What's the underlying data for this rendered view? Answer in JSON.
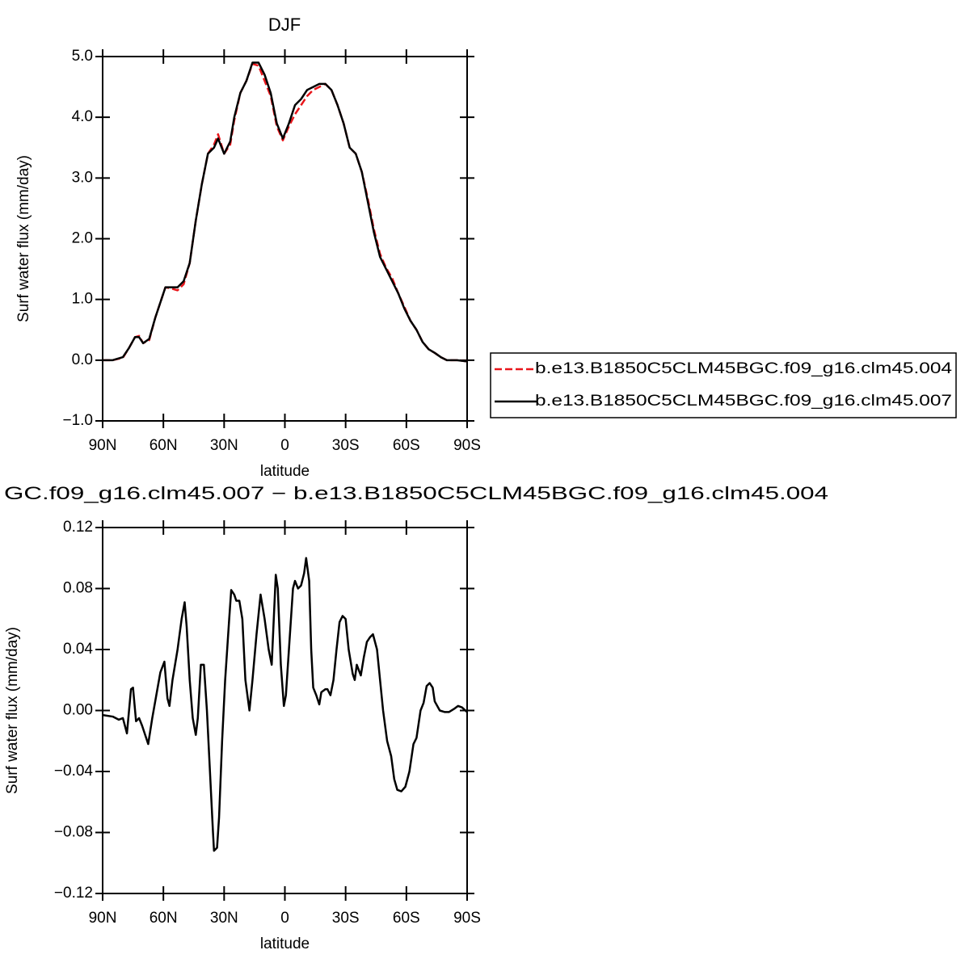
{
  "chart_data": [
    {
      "type": "line",
      "title": "DJF",
      "xlabel": "latitude",
      "ylabel": "Surf water flux (mm/day)",
      "xlim": [
        90,
        -90
      ],
      "xticks": [
        {
          "value": 90,
          "label": "90N"
        },
        {
          "value": 60,
          "label": "60N"
        },
        {
          "value": 30,
          "label": "30N"
        },
        0,
        {
          "value": -30,
          "label": "30S"
        },
        {
          "value": -60,
          "label": "60S"
        },
        {
          "value": -90,
          "label": "90S"
        }
      ],
      "ylim": [
        -1,
        5
      ],
      "yticks": [
        {
          "value": -1,
          "label": "−1.0"
        },
        {
          "value": 0,
          "label": "0.0"
        },
        {
          "value": 1,
          "label": "1.0"
        },
        {
          "value": 2,
          "label": "2.0"
        },
        {
          "value": 3,
          "label": "3.0"
        },
        {
          "value": 4,
          "label": "4.0"
        },
        {
          "value": 5,
          "label": "5.0"
        }
      ],
      "legend": "right",
      "x": [
        90,
        85,
        80,
        77,
        74,
        72,
        70,
        67,
        64,
        61,
        59,
        56,
        53,
        50,
        47,
        44,
        41,
        38,
        35,
        33,
        30,
        27,
        25,
        22,
        19,
        16,
        13,
        10,
        7,
        4,
        1,
        -2,
        -5,
        -8,
        -11,
        -14,
        -17,
        -20,
        -23,
        -26,
        -29,
        -32,
        -35,
        -38,
        -41,
        -44,
        -47,
        -50,
        -53,
        -56,
        -59,
        -62,
        -65,
        -68,
        -71,
        -74,
        -77,
        -80,
        -85,
        -90
      ],
      "series": [
        {
          "name": "b.e13.B1850C5CLM45BGC.f09_g16.clm45.004",
          "color": "#e8161b",
          "dashed": true,
          "values": [
            0,
            0,
            0.04,
            0.2,
            0.38,
            0.4,
            0.28,
            0.33,
            0.7,
            1.0,
            1.2,
            1.18,
            1.15,
            1.25,
            1.6,
            2.3,
            2.9,
            3.4,
            3.55,
            3.72,
            3.4,
            3.55,
            3.95,
            4.4,
            4.6,
            4.88,
            4.85,
            4.6,
            4.35,
            3.85,
            3.62,
            3.85,
            4.05,
            4.2,
            4.35,
            4.45,
            4.5,
            4.55,
            4.45,
            4.2,
            3.9,
            3.5,
            3.4,
            3.1,
            2.65,
            2.15,
            1.75,
            1.52,
            1.35,
            1.1,
            0.88,
            0.65,
            0.5,
            0.3,
            0.18,
            0.12,
            0.05,
            0,
            0,
            -0.02
          ]
        },
        {
          "name": "b.e13.B1850C5CLM45BGC.f09_g16.clm45.007",
          "color": "#000000",
          "dashed": false,
          "values": [
            0,
            0,
            0.05,
            0.2,
            0.38,
            0.38,
            0.28,
            0.35,
            0.7,
            1.0,
            1.2,
            1.2,
            1.2,
            1.3,
            1.6,
            2.3,
            2.9,
            3.4,
            3.5,
            3.65,
            3.4,
            3.6,
            4.0,
            4.4,
            4.6,
            4.9,
            4.9,
            4.7,
            4.4,
            3.9,
            3.65,
            3.9,
            4.2,
            4.3,
            4.45,
            4.5,
            4.55,
            4.55,
            4.45,
            4.2,
            3.9,
            3.5,
            3.4,
            3.1,
            2.6,
            2.1,
            1.7,
            1.5,
            1.3,
            1.1,
            0.85,
            0.65,
            0.5,
            0.3,
            0.18,
            0.12,
            0.05,
            0,
            0,
            -0.02
          ]
        }
      ]
    },
    {
      "type": "line",
      "title": "GC.f09_g16.clm45.007 − b.e13.B1850C5CLM45BGC.f09_g16.clm45.004",
      "xlabel": "latitude",
      "ylabel": "Surf water flux (mm/day)",
      "xlim": [
        90,
        -90
      ],
      "xticks": [
        {
          "value": 90,
          "label": "90N"
        },
        {
          "value": 60,
          "label": "60N"
        },
        {
          "value": 30,
          "label": "30N"
        },
        0,
        {
          "value": -30,
          "label": "30S"
        },
        {
          "value": -60,
          "label": "60S"
        },
        {
          "value": -90,
          "label": "90S"
        }
      ],
      "ylim": [
        -0.12,
        0.12
      ],
      "yticks": [
        {
          "value": -0.12,
          "label": "−0.12"
        },
        {
          "value": -0.08,
          "label": "−0.08"
        },
        {
          "value": -0.04,
          "label": "−0.04"
        },
        {
          "value": 0,
          "label": "0.00"
        },
        0.04,
        0.08,
        0.12
      ],
      "color": "#000000",
      "x": [
        90,
        85,
        82,
        80,
        78,
        76,
        75,
        73.5,
        72,
        70.5,
        67.5,
        65.5,
        63.5,
        61.5,
        59.5,
        58,
        57,
        55.5,
        53,
        51,
        49.5,
        48.5,
        47,
        45.5,
        44,
        43,
        41.5,
        40,
        38.5,
        37,
        35.5,
        35,
        33.5,
        32.5,
        31,
        29.5,
        27.5,
        26.5,
        25,
        24,
        22.5,
        21,
        19.5,
        17.5,
        16,
        14,
        12,
        10,
        8,
        6.5,
        6,
        4.5,
        3.5,
        2,
        0.5,
        -0.5,
        -2,
        -4,
        -5,
        -6.5,
        -8,
        -9.5,
        -10.5,
        -12,
        -13,
        -14,
        -15.5,
        -17,
        -18,
        -20,
        -21,
        -22.5,
        -24,
        -25.5,
        -27,
        -28.5,
        -30,
        -31.5,
        -33.5,
        -34.5,
        -35.5,
        -37.5,
        -39,
        -40.5,
        -42,
        -43.5,
        -45.5,
        -47,
        -48.5,
        -50.5,
        -52.5,
        -54,
        -55.5,
        -57.5,
        -59.5,
        -61.5,
        -63.5,
        -65,
        -67,
        -68.5,
        -70,
        -71.5,
        -73,
        -74,
        -76.5,
        -79,
        -81,
        -83.5,
        -85.5,
        -87.5,
        -90
      ],
      "values": [
        -0.003,
        -0.004,
        -0.006,
        -0.005,
        -0.015,
        0.014,
        0.015,
        -0.007,
        -0.005,
        -0.01,
        -0.022,
        -0.005,
        0.01,
        0.025,
        0.032,
        0.008,
        0.003,
        0.02,
        0.04,
        0.06,
        0.071,
        0.055,
        0.02,
        -0.005,
        -0.016,
        -0.005,
        0.03,
        0.03,
        0,
        -0.04,
        -0.08,
        -0.092,
        -0.09,
        -0.07,
        -0.02,
        0.02,
        0.06,
        0.079,
        0.076,
        0.072,
        0.072,
        0.06,
        0.02,
        0,
        0.02,
        0.05,
        0.076,
        0.06,
        0.04,
        0.03,
        0.045,
        0.089,
        0.08,
        0.03,
        0.003,
        0.01,
        0.04,
        0.08,
        0.085,
        0.08,
        0.082,
        0.09,
        0.1,
        0.085,
        0.04,
        0.015,
        0.01,
        0.004,
        0.012,
        0.014,
        0.014,
        0.01,
        0.02,
        0.04,
        0.058,
        0.062,
        0.06,
        0.04,
        0.024,
        0.02,
        0.03,
        0.023,
        0.035,
        0.045,
        0.048,
        0.05,
        0.04,
        0.02,
        0,
        -0.02,
        -0.03,
        -0.045,
        -0.052,
        -0.053,
        -0.05,
        -0.04,
        -0.022,
        -0.018,
        0,
        0.005,
        0.016,
        0.018,
        0.015,
        0.006,
        0,
        -0.001,
        -0.001,
        0.001,
        0.003,
        0.002,
        -0.001
      ]
    }
  ]
}
